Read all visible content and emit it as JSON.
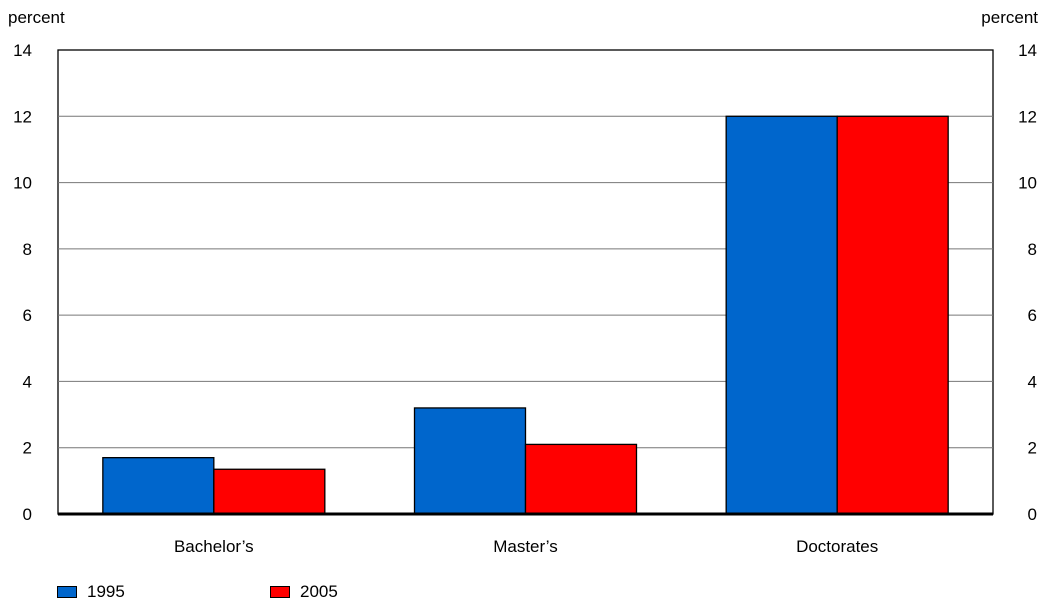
{
  "chart_data": {
    "type": "bar",
    "y_unit_left": "percent",
    "y_unit_right": "percent",
    "categories": [
      "Bachelor’s",
      "Master’s",
      "Doctorates"
    ],
    "series": [
      {
        "name": "1995",
        "color": "#0066cc",
        "values": [
          1.7,
          3.2,
          12.0
        ]
      },
      {
        "name": "2005",
        "color": "#ff0000",
        "values": [
          1.35,
          2.1,
          12.0
        ]
      }
    ],
    "ylim": [
      0,
      14
    ],
    "yticks": [
      0,
      2,
      4,
      6,
      8,
      10,
      12,
      14
    ],
    "grid": true,
    "legend_placement": "bottom-left"
  }
}
